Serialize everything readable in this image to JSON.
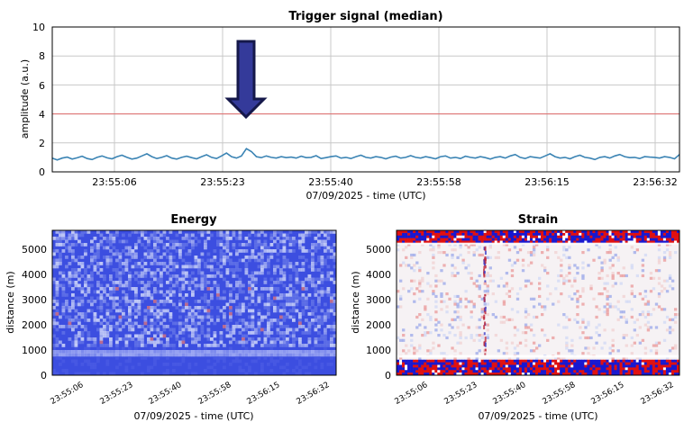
{
  "colors": {
    "signal_line": "#3b84b4",
    "threshold_line": "#e06b6b",
    "arrow_fill": "#343a9a",
    "arrow_outline": "#15184a",
    "energy_base": "#3c4ee0",
    "strain_red": "#e01010",
    "strain_blue": "#1818d0"
  },
  "chart_data": [
    {
      "type": "line",
      "title": "Trigger signal (median)",
      "xlabel": "07/09/2025 - time (UTC)",
      "ylabel": "amplitude (a.u.)",
      "ylim": [
        0,
        10
      ],
      "yticks": [
        "0",
        "2",
        "4",
        "6",
        "8",
        "10"
      ],
      "xticks": [
        "23:55:06",
        "23:55:23",
        "23:55:40",
        "23:55:58",
        "23:56:15",
        "23:56:32"
      ],
      "grid": true,
      "threshold": 4,
      "annotation": "arrow-down",
      "annotation_x": "23:55:26",
      "series": [
        {
          "values": [
            0.95,
            0.82,
            0.95,
            1.02,
            0.88,
            0.97,
            1.08,
            0.92,
            0.85,
            1.0,
            1.1,
            0.97,
            0.9,
            1.05,
            1.15,
            1.0,
            0.88,
            0.95,
            1.1,
            1.25,
            1.05,
            0.92,
            1.0,
            1.12,
            0.95,
            0.88,
            1.0,
            1.08,
            0.98,
            0.9,
            1.05,
            1.18,
            1.0,
            0.92,
            1.1,
            1.3,
            1.05,
            0.95,
            1.1,
            1.6,
            1.4,
            1.05,
            0.98,
            1.1,
            1.0,
            0.95,
            1.05,
            0.98,
            1.02,
            0.95,
            1.08,
            0.98,
            1.0,
            1.12,
            0.92,
            0.98,
            1.05,
            1.1,
            0.95,
            1.0,
            0.92,
            1.05,
            1.15,
            1.0,
            0.95,
            1.05,
            1.0,
            0.9,
            1.02,
            1.08,
            0.95,
            1.0,
            1.12,
            1.0,
            0.95,
            1.05,
            0.98,
            0.9,
            1.05,
            1.1,
            0.95,
            1.0,
            0.92,
            1.08,
            1.0,
            0.95,
            1.05,
            0.98,
            0.88,
            1.0,
            1.05,
            0.95,
            1.1,
            1.2,
            1.0,
            0.92,
            1.05,
            1.0,
            0.95,
            1.1,
            1.25,
            1.05,
            0.95,
            1.0,
            0.9,
            1.05,
            1.15,
            1.0,
            0.95,
            0.85,
            1.0,
            1.05,
            0.95,
            1.1,
            1.2,
            1.05,
            0.98,
            1.0,
            0.92,
            1.05,
            1.02,
            1.0,
            0.95,
            1.05,
            1.0,
            0.9,
            1.2
          ]
        }
      ]
    },
    {
      "type": "heatmap",
      "title": "Energy",
      "xlabel": "07/09/2025 - time (UTC)",
      "ylabel": "distance (m)",
      "ylim": [
        0,
        5800
      ],
      "yticks": [
        "0",
        "1000",
        "2000",
        "3000",
        "4000",
        "5000"
      ],
      "xticks": [
        "23:55:06",
        "23:55:23",
        "23:55:40",
        "23:55:58",
        "23:56:15",
        "23:56:32"
      ]
    },
    {
      "type": "heatmap",
      "title": "Strain",
      "xlabel": "07/09/2025 - time (UTC)",
      "ylabel": "distance (m)",
      "ylim": [
        0,
        5800
      ],
      "yticks": [
        "0",
        "1000",
        "2000",
        "3000",
        "4000",
        "5000"
      ],
      "xticks": [
        "23:55:06",
        "23:55:23",
        "23:55:40",
        "23:55:58",
        "23:56:15",
        "23:56:32"
      ]
    }
  ]
}
